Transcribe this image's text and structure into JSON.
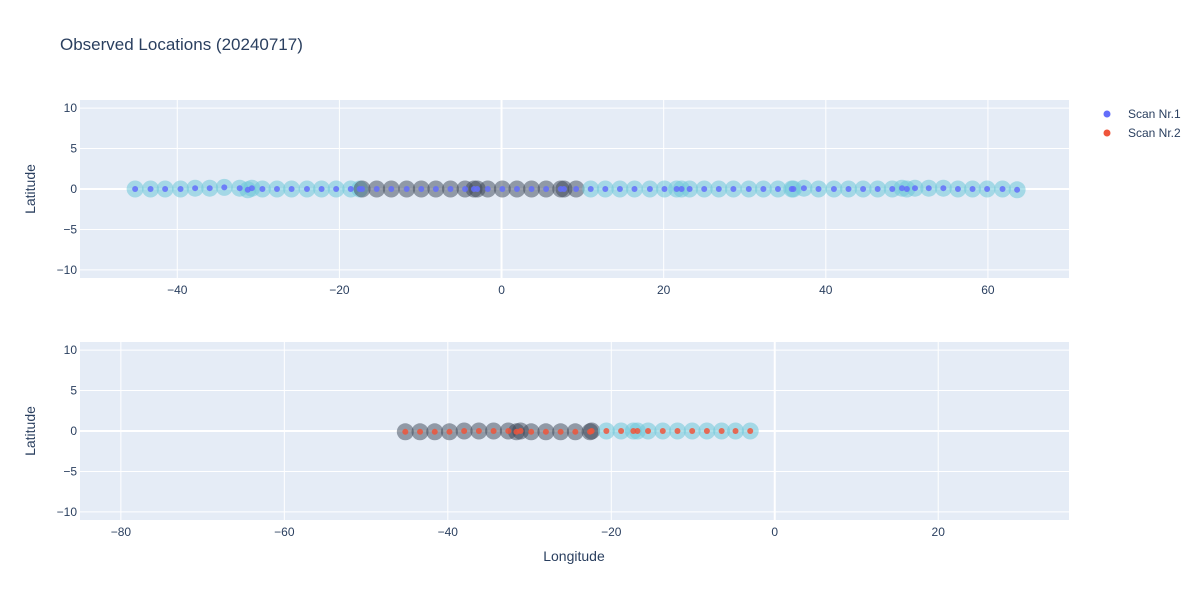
{
  "chart_data": {
    "type": "scatter",
    "title": "Observed Locations (20240717)",
    "colors": {
      "plot_bg": "#e5ecf6",
      "grid": "#ffffff",
      "text": "#2a3f5f",
      "scan1": "#636efa",
      "scan2": "#ef553b",
      "halo_light": "#6fc8d8",
      "halo_dark": "#3b4656"
    },
    "legend": {
      "placement": "top-right",
      "entries": [
        "Scan Nr.1",
        "Scan Nr.2"
      ]
    },
    "subplots": [
      {
        "xlim": [
          -52,
          70
        ],
        "ylim": [
          -11,
          11
        ],
        "xticks": [
          -40,
          -20,
          0,
          20,
          40,
          60
        ],
        "xtick_labels": [
          "−40",
          "−20",
          "0",
          "20",
          "40",
          "60"
        ],
        "yticks": [
          -10,
          -5,
          0,
          5,
          10
        ],
        "ytick_labels": [
          "−10",
          "−5",
          "0",
          "5",
          "10"
        ],
        "ylabel": "Latitude",
        "xlabel": "",
        "series": [
          {
            "name": "Scan Nr.1",
            "color_key": "scan1",
            "points": [
              {
                "x": -45.2,
                "y": 0,
                "halo": "light"
              },
              {
                "x": -43.3,
                "y": 0,
                "halo": "light"
              },
              {
                "x": -41.5,
                "y": 0,
                "halo": "light"
              },
              {
                "x": -39.6,
                "y": 0,
                "halo": "light"
              },
              {
                "x": -37.8,
                "y": 0.1,
                "halo": "light"
              },
              {
                "x": -36.0,
                "y": 0.1,
                "halo": "light"
              },
              {
                "x": -34.2,
                "y": 0.2,
                "halo": "light"
              },
              {
                "x": -32.3,
                "y": 0.1,
                "halo": "light"
              },
              {
                "x": -31.3,
                "y": -0.1,
                "halo": "light"
              },
              {
                "x": -30.8,
                "y": 0.1,
                "halo": "light"
              },
              {
                "x": -29.5,
                "y": 0,
                "halo": "light"
              },
              {
                "x": -27.7,
                "y": 0,
                "halo": "light"
              },
              {
                "x": -25.9,
                "y": 0,
                "halo": "light"
              },
              {
                "x": -24.0,
                "y": 0,
                "halo": "light"
              },
              {
                "x": -22.2,
                "y": 0,
                "halo": "light"
              },
              {
                "x": -20.4,
                "y": 0,
                "halo": "light"
              },
              {
                "x": -18.6,
                "y": 0,
                "halo": "light"
              },
              {
                "x": -17.5,
                "y": 0,
                "halo": "light"
              },
              {
                "x": -17.2,
                "y": 0,
                "halo": "dark"
              },
              {
                "x": -15.4,
                "y": 0,
                "halo": "dark"
              },
              {
                "x": -13.6,
                "y": 0,
                "halo": "dark"
              },
              {
                "x": -11.7,
                "y": 0,
                "halo": "dark"
              },
              {
                "x": -9.9,
                "y": 0,
                "halo": "dark"
              },
              {
                "x": -8.1,
                "y": 0,
                "halo": "dark"
              },
              {
                "x": -6.3,
                "y": 0,
                "halo": "dark"
              },
              {
                "x": -4.5,
                "y": 0,
                "halo": "dark"
              },
              {
                "x": -3.4,
                "y": 0,
                "halo": "dark"
              },
              {
                "x": -3.0,
                "y": 0,
                "halo": "dark"
              },
              {
                "x": -1.7,
                "y": 0,
                "halo": "dark"
              },
              {
                "x": 0.1,
                "y": 0,
                "halo": "dark"
              },
              {
                "x": 1.9,
                "y": 0,
                "halo": "dark"
              },
              {
                "x": 3.7,
                "y": 0,
                "halo": "dark"
              },
              {
                "x": 5.5,
                "y": 0,
                "halo": "dark"
              },
              {
                "x": 7.3,
                "y": 0,
                "halo": "dark"
              },
              {
                "x": 7.7,
                "y": 0,
                "halo": "dark"
              },
              {
                "x": 9.2,
                "y": 0,
                "halo": "dark"
              },
              {
                "x": 11.0,
                "y": 0,
                "halo": "light"
              },
              {
                "x": 12.8,
                "y": 0,
                "halo": "light"
              },
              {
                "x": 14.6,
                "y": 0,
                "halo": "light"
              },
              {
                "x": 16.4,
                "y": 0,
                "halo": "light"
              },
              {
                "x": 18.3,
                "y": 0,
                "halo": "light"
              },
              {
                "x": 20.1,
                "y": 0,
                "halo": "light"
              },
              {
                "x": 21.6,
                "y": 0,
                "halo": "light"
              },
              {
                "x": 22.2,
                "y": 0,
                "halo": "light"
              },
              {
                "x": 23.2,
                "y": 0,
                "halo": "light"
              },
              {
                "x": 25.0,
                "y": 0,
                "halo": "light"
              },
              {
                "x": 26.8,
                "y": 0,
                "halo": "light"
              },
              {
                "x": 28.6,
                "y": 0,
                "halo": "light"
              },
              {
                "x": 30.5,
                "y": 0,
                "halo": "light"
              },
              {
                "x": 32.3,
                "y": 0,
                "halo": "light"
              },
              {
                "x": 34.1,
                "y": 0,
                "halo": "light"
              },
              {
                "x": 35.8,
                "y": 0,
                "halo": "light"
              },
              {
                "x": 36.0,
                "y": 0,
                "halo": "light"
              },
              {
                "x": 37.3,
                "y": 0.1,
                "halo": "light"
              },
              {
                "x": 39.1,
                "y": 0,
                "halo": "light"
              },
              {
                "x": 41.0,
                "y": 0,
                "halo": "light"
              },
              {
                "x": 42.8,
                "y": 0,
                "halo": "light"
              },
              {
                "x": 44.6,
                "y": 0,
                "halo": "light"
              },
              {
                "x": 46.4,
                "y": 0,
                "halo": "light"
              },
              {
                "x": 48.2,
                "y": 0,
                "halo": "light"
              },
              {
                "x": 49.4,
                "y": 0.1,
                "halo": "light"
              },
              {
                "x": 50.0,
                "y": 0,
                "halo": "light"
              },
              {
                "x": 51.0,
                "y": 0.1,
                "halo": "light"
              },
              {
                "x": 52.7,
                "y": 0.1,
                "halo": "light"
              },
              {
                "x": 54.5,
                "y": 0.1,
                "halo": "light"
              },
              {
                "x": 56.3,
                "y": 0,
                "halo": "light"
              },
              {
                "x": 58.1,
                "y": 0,
                "halo": "light"
              },
              {
                "x": 59.9,
                "y": 0,
                "halo": "light"
              },
              {
                "x": 61.8,
                "y": 0,
                "halo": "light"
              },
              {
                "x": 63.6,
                "y": -0.1,
                "halo": "light"
              }
            ]
          }
        ]
      },
      {
        "xlim": [
          -85,
          36
        ],
        "ylim": [
          -11,
          11
        ],
        "xticks": [
          -80,
          -60,
          -40,
          -20,
          0,
          20
        ],
        "xtick_labels": [
          "−80",
          "−60",
          "−40",
          "−20",
          "0",
          "20"
        ],
        "yticks": [
          -10,
          -5,
          0,
          5,
          10
        ],
        "ytick_labels": [
          "−10",
          "−5",
          "0",
          "5",
          "10"
        ],
        "ylabel": "Latitude",
        "xlabel": "Longitude",
        "series": [
          {
            "name": "Scan Nr.2",
            "color_key": "scan2",
            "points": [
              {
                "x": -45.2,
                "y": -0.1,
                "halo": "dark"
              },
              {
                "x": -43.4,
                "y": -0.1,
                "halo": "dark"
              },
              {
                "x": -41.6,
                "y": -0.1,
                "halo": "dark"
              },
              {
                "x": -39.8,
                "y": -0.1,
                "halo": "dark"
              },
              {
                "x": -38.0,
                "y": 0,
                "halo": "dark"
              },
              {
                "x": -36.2,
                "y": 0,
                "halo": "dark"
              },
              {
                "x": -34.4,
                "y": 0,
                "halo": "dark"
              },
              {
                "x": -32.6,
                "y": 0,
                "halo": "dark"
              },
              {
                "x": -31.6,
                "y": -0.1,
                "halo": "dark"
              },
              {
                "x": -31.1,
                "y": 0,
                "halo": "dark"
              },
              {
                "x": -29.8,
                "y": -0.1,
                "halo": "dark"
              },
              {
                "x": -28.0,
                "y": -0.1,
                "halo": "dark"
              },
              {
                "x": -26.2,
                "y": -0.1,
                "halo": "dark"
              },
              {
                "x": -24.4,
                "y": -0.1,
                "halo": "dark"
              },
              {
                "x": -22.6,
                "y": -0.1,
                "halo": "dark"
              },
              {
                "x": -22.4,
                "y": 0,
                "halo": "dark"
              },
              {
                "x": -20.6,
                "y": 0,
                "halo": "light"
              },
              {
                "x": -18.8,
                "y": 0,
                "halo": "light"
              },
              {
                "x": -17.3,
                "y": 0,
                "halo": "light"
              },
              {
                "x": -16.8,
                "y": 0,
                "halo": "light"
              },
              {
                "x": -15.5,
                "y": 0,
                "halo": "light"
              },
              {
                "x": -13.7,
                "y": 0,
                "halo": "light"
              },
              {
                "x": -11.9,
                "y": 0,
                "halo": "light"
              },
              {
                "x": -10.1,
                "y": 0,
                "halo": "light"
              },
              {
                "x": -8.3,
                "y": 0,
                "halo": "light"
              },
              {
                "x": -6.5,
                "y": 0,
                "halo": "light"
              },
              {
                "x": -4.8,
                "y": 0,
                "halo": "light"
              },
              {
                "x": -3.0,
                "y": 0,
                "halo": "light"
              }
            ]
          }
        ]
      }
    ]
  }
}
